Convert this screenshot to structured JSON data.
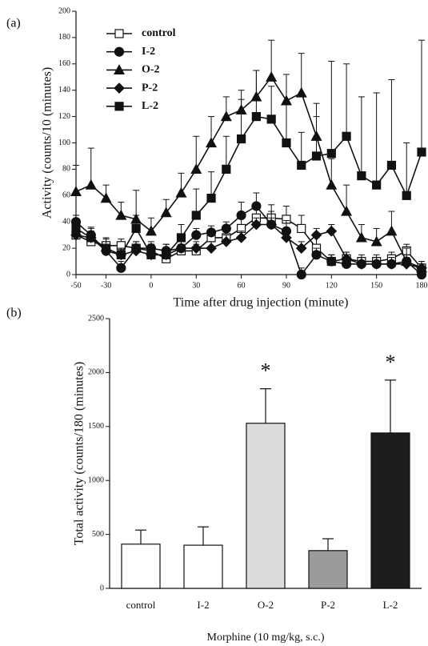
{
  "chart_data": [
    {
      "type": "line",
      "panel": "(a)",
      "x_label": "Time after drug injection (minute)",
      "y_label": "Activity (counts/10 (minutes)",
      "x": [
        -50,
        -40,
        -30,
        -20,
        -10,
        0,
        10,
        20,
        30,
        40,
        50,
        60,
        70,
        80,
        90,
        100,
        110,
        120,
        130,
        140,
        150,
        160,
        170,
        180
      ],
      "xlim": [
        -50,
        180
      ],
      "xticks": [
        -50,
        -30,
        0,
        30,
        60,
        90,
        120,
        150,
        180
      ],
      "ylim": [
        0,
        200
      ],
      "yticks": [
        0,
        20,
        40,
        60,
        80,
        100,
        120,
        140,
        160,
        180,
        200
      ],
      "legend": "upper left",
      "series": [
        {
          "name": "control",
          "color": "#111",
          "marker": "open-square",
          "values": [
            30,
            25,
            22,
            22,
            20,
            18,
            12,
            18,
            18,
            28,
            28,
            35,
            43,
            43,
            42,
            35,
            20,
            10,
            12,
            10,
            10,
            12,
            18,
            5
          ],
          "errors": [
            5,
            5,
            5,
            5,
            5,
            5,
            5,
            5,
            5,
            5,
            5,
            8,
            10,
            10,
            10,
            10,
            8,
            5,
            5,
            5,
            5,
            5,
            5,
            5
          ]
        },
        {
          "name": "I-2",
          "color": "#111",
          "marker": "circle",
          "values": [
            40,
            30,
            18,
            5,
            20,
            20,
            18,
            20,
            30,
            32,
            35,
            45,
            52,
            38,
            33,
            0,
            15,
            10,
            8,
            8,
            8,
            8,
            10,
            0
          ],
          "errors": [
            5,
            5,
            5,
            5,
            5,
            5,
            5,
            5,
            5,
            5,
            5,
            10,
            10,
            10,
            8,
            5,
            5,
            5,
            5,
            5,
            5,
            5,
            5,
            5
          ]
        },
        {
          "name": "O-2",
          "color": "#111",
          "marker": "triangle",
          "values": [
            63,
            68,
            58,
            45,
            42,
            33,
            47,
            62,
            80,
            100,
            120,
            125,
            135,
            150,
            132,
            138,
            105,
            68,
            48,
            28,
            25,
            33,
            10,
            5
          ],
          "errors": [
            20,
            28,
            10,
            10,
            22,
            10,
            10,
            15,
            25,
            20,
            15,
            15,
            20,
            28,
            20,
            30,
            25,
            20,
            20,
            10,
            10,
            15,
            10,
            5
          ]
        },
        {
          "name": "P-2",
          "color": "#111",
          "marker": "diamond",
          "values": [
            30,
            28,
            18,
            15,
            18,
            15,
            15,
            20,
            20,
            20,
            25,
            28,
            38,
            38,
            28,
            20,
            30,
            33,
            12,
            8,
            8,
            8,
            8,
            5
          ],
          "errors": [
            5,
            5,
            5,
            5,
            5,
            5,
            5,
            5,
            5,
            5,
            5,
            5,
            5,
            5,
            5,
            5,
            5,
            5,
            5,
            5,
            5,
            5,
            5,
            5
          ]
        },
        {
          "name": "L-2",
          "color": "#111",
          "marker": "square",
          "values": [
            35,
            28,
            20,
            15,
            35,
            15,
            15,
            28,
            45,
            58,
            80,
            103,
            120,
            118,
            100,
            83,
            90,
            92,
            105,
            75,
            68,
            83,
            60,
            93
          ],
          "errors": [
            10,
            8,
            8,
            5,
            10,
            8,
            8,
            10,
            20,
            20,
            25,
            30,
            35,
            25,
            30,
            25,
            30,
            70,
            55,
            60,
            70,
            65,
            40,
            85
          ]
        }
      ]
    },
    {
      "type": "bar",
      "panel": "(b)",
      "x_label": "Morphine (10 mg/kg, s.c.)",
      "y_label": "Total activity (counts/180 (minutes)",
      "categories": [
        "control",
        "I-2",
        "O-2",
        "P-2",
        "L-2"
      ],
      "values": [
        410,
        400,
        1530,
        350,
        1440
      ],
      "errors": [
        130,
        170,
        320,
        110,
        490
      ],
      "colors": [
        "#ffffff",
        "#ffffff",
        "#dcdcdc",
        "#9a9a9a",
        "#1c1c1c"
      ],
      "ylim": [
        0,
        2500
      ],
      "yticks": [
        0,
        500,
        1000,
        1500,
        2000,
        2500
      ],
      "annotations": [
        {
          "text": "*",
          "x": "O-2"
        },
        {
          "text": "*",
          "x": "L-2"
        }
      ]
    }
  ]
}
